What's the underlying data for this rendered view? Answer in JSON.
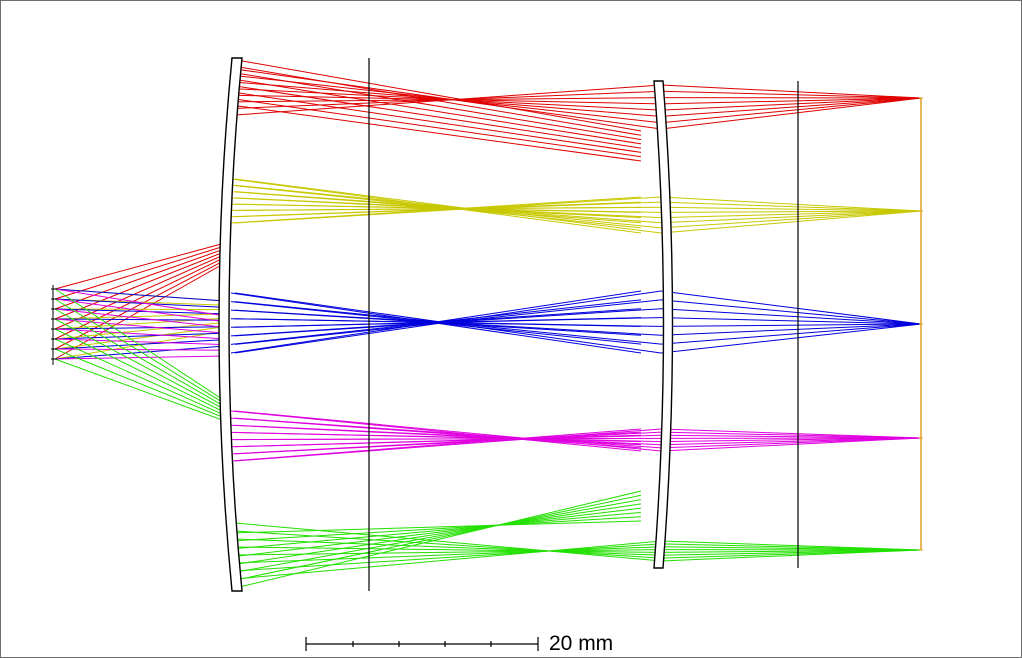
{
  "scale_bar": {
    "label": "20 mm"
  },
  "beams": [
    {
      "name": "red-beam",
      "color": "#e00000"
    },
    {
      "name": "yellow-beam",
      "color": "#c8c800"
    },
    {
      "name": "blue-beam",
      "color": "#0000dd"
    },
    {
      "name": "magenta-beam",
      "color": "#e000e0"
    },
    {
      "name": "green-beam",
      "color": "#22e000"
    }
  ],
  "image_plane_color": "#e0a020"
}
